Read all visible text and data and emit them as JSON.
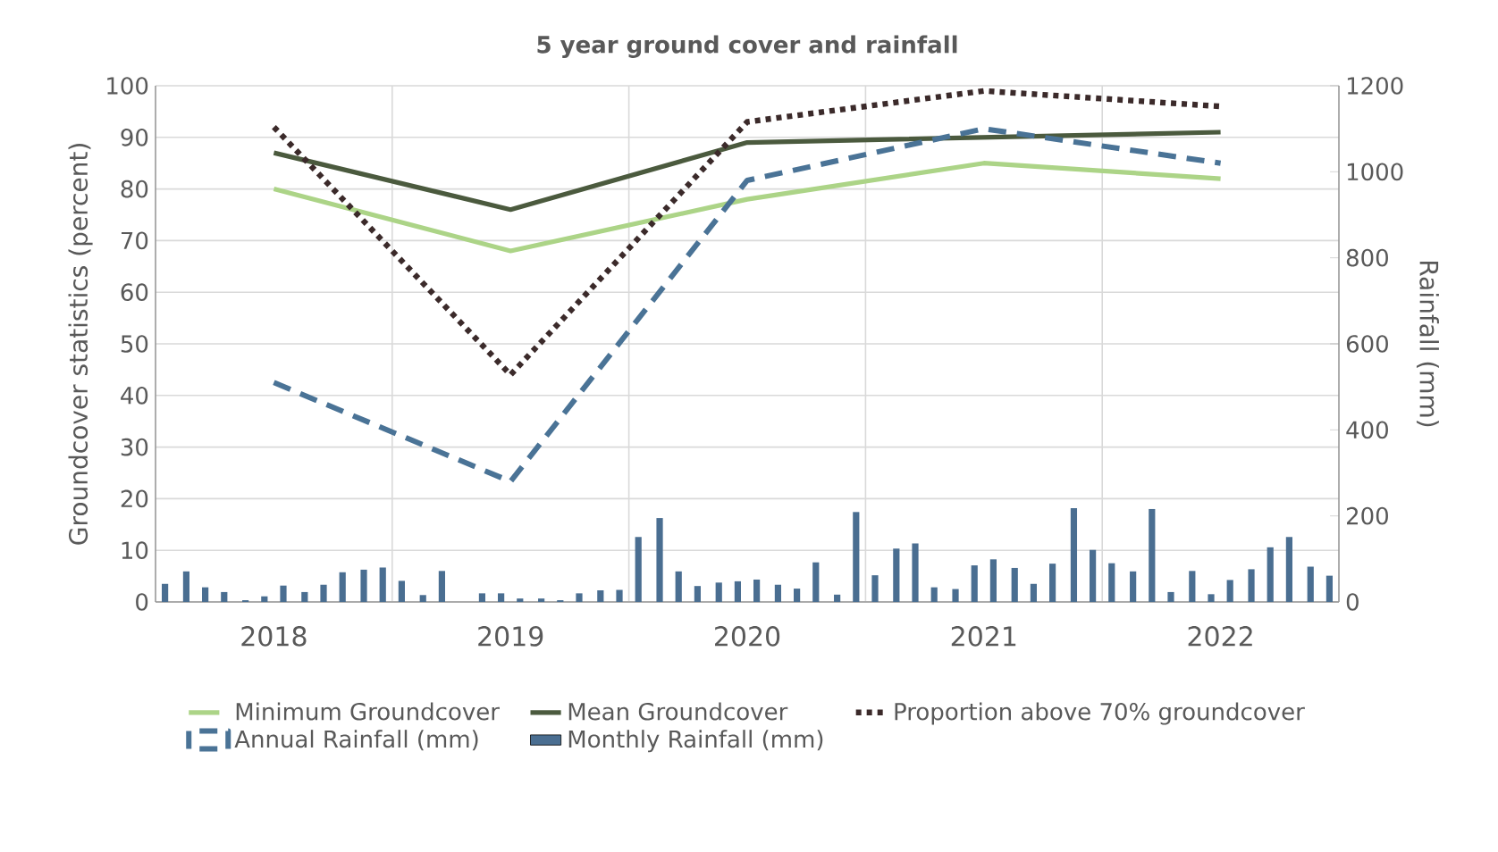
{
  "chart_data": {
    "type": "line",
    "title": "5 year ground cover and rainfall",
    "ylabel": "Groundcover statistics (percent)",
    "y2label": "Rainfall (mm)",
    "x": [
      2018,
      2019,
      2020,
      2021,
      2022
    ],
    "xlim": [
      2017.5,
      2022.5
    ],
    "xticks": [
      2018,
      2019,
      2020,
      2021,
      2022
    ],
    "ylim": [
      0,
      100
    ],
    "yticks": [
      0,
      10,
      20,
      30,
      40,
      50,
      60,
      70,
      80,
      90,
      100
    ],
    "y2lim": [
      0,
      1200
    ],
    "y2ticks": [
      0,
      200,
      400,
      600,
      800,
      1000,
      1200
    ],
    "grid": true,
    "legend": "bottom",
    "marker": "none",
    "series": [
      {
        "name": "Minimum Groundcover",
        "color": "#acd487",
        "line_style": "solid",
        "values": [
          80,
          68,
          78,
          85,
          82
        ]
      },
      {
        "name": "Mean Groundcover",
        "color": "#4b5a3e",
        "line_style": "solid",
        "values": [
          87,
          76,
          89,
          90,
          91
        ]
      },
      {
        "name": "Proportion above 70% groundcover",
        "color": "#3b2a2a",
        "line_style": "dotted",
        "values": [
          92,
          44,
          93,
          99,
          96
        ]
      },
      {
        "name": "Annual Rainfall (mm)",
        "color": "#4a7396",
        "line_style": "dashed",
        "axis": "y2",
        "values": [
          510,
          280,
          980,
          1100,
          1020
        ]
      },
      {
        "name": "Monthly Rainfall (mm)",
        "color": "#4a6e91",
        "type": "bar",
        "axis": "y2",
        "x": [
          2017.54,
          2017.63,
          2017.71,
          2017.79,
          2017.88,
          2017.96,
          2018.04,
          2018.13,
          2018.21,
          2018.29,
          2018.38,
          2018.46,
          2018.54,
          2018.63,
          2018.71,
          2018.79,
          2018.88,
          2018.96,
          2019.04,
          2019.13,
          2019.21,
          2019.29,
          2019.38,
          2019.46,
          2019.54,
          2019.63,
          2019.71,
          2019.79,
          2019.88,
          2019.96,
          2020.04,
          2020.13,
          2020.21,
          2020.29,
          2020.38,
          2020.46,
          2020.54,
          2020.63,
          2020.71,
          2020.79,
          2020.88,
          2020.96,
          2021.04,
          2021.13,
          2021.21,
          2021.29,
          2021.38,
          2021.46,
          2021.54,
          2021.63,
          2021.71,
          2021.79,
          2021.88,
          2021.96,
          2022.04,
          2022.13,
          2022.21,
          2022.29,
          2022.38,
          2022.46
        ],
        "values": [
          42,
          71,
          34,
          23,
          4,
          13,
          38,
          23,
          40,
          69,
          75,
          80,
          49,
          16,
          72,
          null,
          20,
          20,
          8,
          8,
          4,
          20,
          27,
          28,
          151,
          195,
          71,
          37,
          45,
          48,
          52,
          40,
          31,
          92,
          17,
          209,
          62,
          124,
          136,
          34,
          30,
          85,
          99,
          79,
          42,
          89,
          218,
          121,
          90,
          71,
          216,
          23,
          72,
          18,
          51,
          76,
          127,
          151,
          82,
          61
        ]
      }
    ]
  }
}
